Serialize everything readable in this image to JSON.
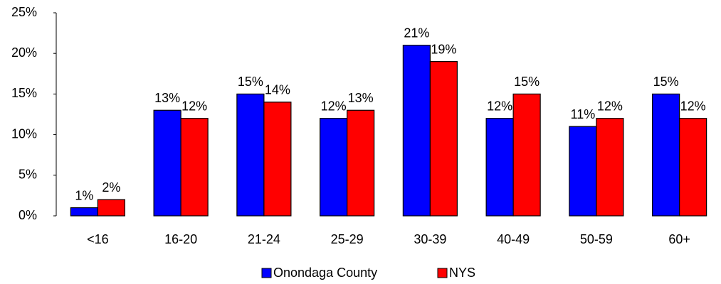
{
  "chart_data": {
    "type": "bar",
    "categories": [
      "<16",
      "16-20",
      "21-24",
      "25-29",
      "30-39",
      "40-49",
      "50-59",
      "60+"
    ],
    "series": [
      {
        "name": "Onondaga County",
        "color": "#0000ff",
        "values": [
          1,
          13,
          15,
          12,
          21,
          12,
          11,
          15
        ],
        "value_labels": [
          "1%",
          "13%",
          "15%",
          "12%",
          "21%",
          "12%",
          "11%",
          "15%"
        ]
      },
      {
        "name": "NYS",
        "color": "#ff0000",
        "values": [
          2,
          12,
          14,
          13,
          19,
          15,
          12,
          12
        ],
        "value_labels": [
          "2%",
          "12%",
          "14%",
          "13%",
          "19%",
          "15%",
          "12%",
          "12%"
        ]
      }
    ],
    "ylim": [
      0,
      25
    ],
    "yticks": [
      {
        "value": 0,
        "label": "0%"
      },
      {
        "value": 5,
        "label": "5%"
      },
      {
        "value": 10,
        "label": "10%"
      },
      {
        "value": 15,
        "label": "15%"
      },
      {
        "value": 20,
        "label": "20%"
      },
      {
        "value": 25,
        "label": "25%"
      }
    ],
    "grid": false,
    "legend": "bottom"
  }
}
